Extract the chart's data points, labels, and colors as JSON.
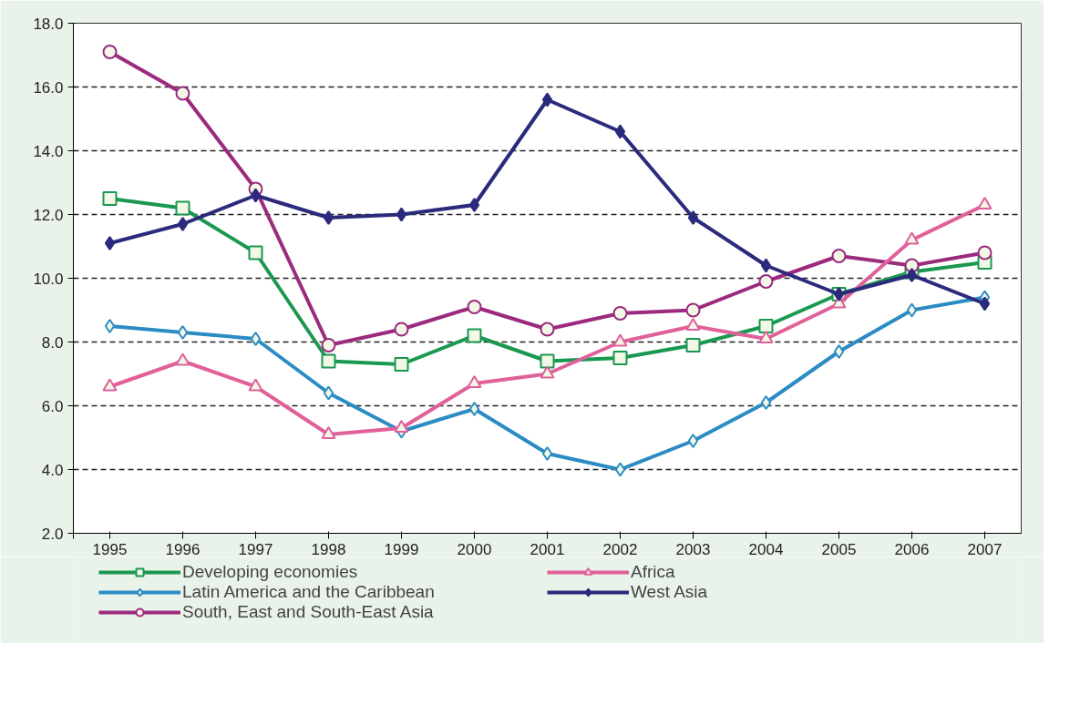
{
  "chart_data": {
    "type": "line",
    "x": [
      1995,
      1996,
      1997,
      1998,
      1999,
      2000,
      2001,
      2002,
      2003,
      2004,
      2005,
      2006,
      2007
    ],
    "xlim": [
      1994.5,
      2007.5
    ],
    "xticks": [
      {
        "value": 1994.5,
        "label": null
      },
      1995,
      1996,
      1997,
      1998,
      1999,
      2000,
      2001,
      2002,
      2003,
      2004,
      2005,
      2006,
      2007
    ],
    "ylim": [
      2.0,
      18.0
    ],
    "yticks": [
      {
        "value": 2,
        "label": "2.0"
      },
      {
        "value": 4,
        "label": "4.0"
      },
      {
        "value": 6,
        "label": "6.0"
      },
      {
        "value": 8,
        "label": "8.0"
      },
      {
        "value": 10,
        "label": "10.0"
      },
      {
        "value": 12,
        "label": "12.0"
      },
      {
        "value": 14,
        "label": "14.0"
      },
      {
        "value": 16,
        "label": "16.0"
      },
      {
        "value": 18,
        "label": "18.0"
      }
    ],
    "grid": "y",
    "legend": "bottom",
    "series": [
      {
        "name": "Developing economies",
        "color": "#1a9850",
        "marker": "square",
        "values": [
          12.5,
          12.2,
          10.8,
          7.4,
          7.3,
          8.2,
          7.4,
          7.5,
          7.9,
          8.5,
          9.5,
          10.2,
          10.5
        ]
      },
      {
        "name": "Latin America and the Caribbean",
        "color": "#2b8cc4",
        "marker": "diamond",
        "values": [
          8.5,
          8.3,
          8.1,
          6.4,
          5.2,
          5.9,
          4.5,
          4.0,
          4.9,
          6.1,
          7.7,
          9.0,
          9.4
        ]
      },
      {
        "name": "South, East and South-East Asia",
        "color": "#9c2a7e",
        "marker": "circle",
        "values": [
          17.1,
          15.8,
          12.8,
          7.9,
          8.4,
          9.1,
          8.4,
          8.9,
          9.0,
          9.9,
          10.7,
          10.4,
          10.8
        ]
      },
      {
        "name": "Africa",
        "color": "#e0609a",
        "marker": "triangle",
        "values": [
          6.6,
          7.4,
          6.6,
          5.1,
          5.3,
          6.7,
          7.0,
          8.0,
          8.5,
          8.1,
          9.2,
          11.2,
          12.3
        ]
      },
      {
        "name": "West Asia",
        "color": "#2b2a7c",
        "marker": "diamond",
        "values": [
          11.1,
          11.7,
          12.6,
          11.9,
          12.0,
          12.3,
          15.6,
          14.6,
          11.9,
          10.4,
          9.5,
          10.1,
          9.2
        ]
      }
    ]
  }
}
